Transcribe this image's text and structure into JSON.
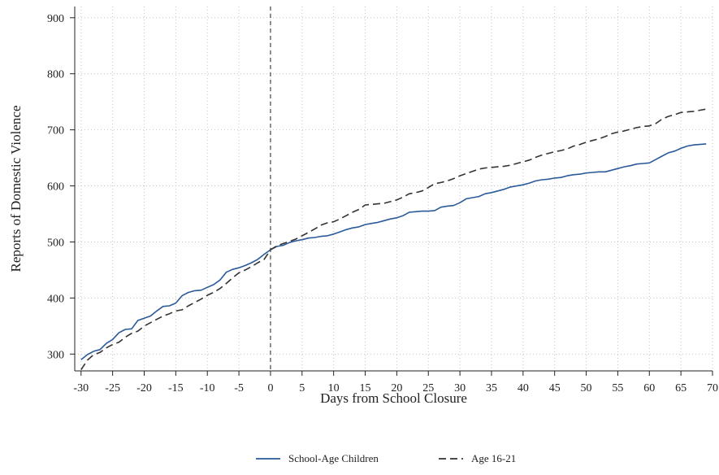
{
  "chart_data": {
    "type": "line",
    "title": "",
    "xlabel": "Days from School Closure",
    "ylabel": "Reports of Domestic Violence",
    "xlim": [
      -31,
      70
    ],
    "ylim": [
      270,
      920
    ],
    "xticks": [
      -30,
      -25,
      -20,
      -15,
      -10,
      -5,
      0,
      5,
      10,
      15,
      20,
      25,
      30,
      35,
      40,
      45,
      50,
      55,
      60,
      65,
      70
    ],
    "xtick_labels": [
      "-30",
      "-25",
      "-20",
      "-15",
      "-10",
      "-5",
      "0",
      "5",
      "10",
      "15",
      "20",
      "25",
      "30",
      "35",
      "40",
      "45",
      "50",
      "55",
      "60",
      "65",
      "70"
    ],
    "yticks": [
      300,
      400,
      500,
      600,
      700,
      800,
      900
    ],
    "ytick_labels": [
      "300",
      "400",
      "500",
      "600",
      "700",
      "800",
      "900"
    ],
    "grid": true,
    "reference_line_x": 0,
    "legend_position": "bottom",
    "series": [
      {
        "name": "School-Age Children",
        "color": "#2a5a9a",
        "style": "solid",
        "x": [
          -30,
          -29,
          -28,
          -27,
          -26,
          -25,
          -24,
          -23,
          -22,
          -21,
          -20,
          -19,
          -18,
          -17,
          -16,
          -15,
          -14,
          -13,
          -12,
          -11,
          -10,
          -9,
          -8,
          -7,
          -6,
          -5,
          -4,
          -3,
          -2,
          -1,
          0,
          1,
          2,
          3,
          4,
          5,
          6,
          7,
          8,
          9,
          10,
          11,
          12,
          13,
          14,
          15,
          16,
          17,
          18,
          19,
          20,
          21,
          22,
          23,
          24,
          25,
          26,
          27,
          28,
          29,
          30,
          31,
          32,
          33,
          34,
          35,
          36,
          37,
          38,
          39,
          40,
          41,
          42,
          43,
          44,
          45,
          46,
          47,
          48,
          49,
          50,
          51,
          52,
          53,
          54,
          55,
          56,
          57,
          58,
          59,
          60,
          61,
          62,
          63,
          64,
          65,
          66,
          67,
          68,
          69
        ],
        "y": [
          290,
          299,
          305,
          308,
          319,
          326,
          338,
          344,
          345,
          360,
          364,
          368,
          377,
          385,
          386,
          391,
          404,
          410,
          413,
          414,
          419,
          424,
          432,
          446,
          451,
          454,
          458,
          463,
          469,
          478,
          486,
          492,
          494,
          499,
          502,
          504,
          507,
          508,
          510,
          511,
          514,
          518,
          522,
          525,
          527,
          531,
          533,
          535,
          538,
          541,
          543,
          547,
          553,
          554,
          555,
          555,
          556,
          562,
          564,
          565,
          570,
          577,
          579,
          581,
          586,
          588,
          591,
          594,
          598,
          600,
          602,
          605,
          609,
          611,
          612,
          614,
          615,
          618,
          620,
          621,
          623,
          624,
          625,
          625,
          628,
          631,
          634,
          636,
          639,
          640,
          641,
          647,
          653,
          659,
          662,
          667,
          671,
          673,
          674,
          675
        ]
      },
      {
        "name": "Age 16-21",
        "color": "#333333",
        "style": "dashed",
        "x": [
          -30,
          -29,
          -28,
          -27,
          -26,
          -25,
          -24,
          -23,
          -22,
          -21,
          -20,
          -19,
          -18,
          -17,
          -16,
          -15,
          -14,
          -13,
          -12,
          -11,
          -10,
          -9,
          -8,
          -7,
          -6,
          -5,
          -4,
          -3,
          -2,
          -1,
          0,
          1,
          2,
          3,
          4,
          5,
          6,
          7,
          8,
          9,
          10,
          11,
          12,
          13,
          14,
          15,
          16,
          17,
          18,
          19,
          20,
          21,
          22,
          23,
          24,
          25,
          26,
          27,
          28,
          29,
          30,
          31,
          32,
          33,
          34,
          35,
          36,
          37,
          38,
          39,
          40,
          41,
          42,
          43,
          44,
          45,
          46,
          47,
          48,
          49,
          50,
          51,
          52,
          53,
          54,
          55,
          56,
          57,
          58,
          59,
          60,
          61,
          62,
          63,
          64,
          65,
          66,
          67,
          68,
          69
        ],
        "y": [
          272,
          289,
          299,
          303,
          311,
          317,
          321,
          330,
          337,
          341,
          350,
          356,
          362,
          368,
          372,
          377,
          379,
          386,
          392,
          398,
          405,
          410,
          417,
          426,
          436,
          445,
          450,
          456,
          463,
          469,
          486,
          493,
          497,
          501,
          505,
          511,
          517,
          523,
          530,
          534,
          536,
          541,
          547,
          553,
          558,
          566,
          567,
          568,
          569,
          572,
          575,
          580,
          586,
          588,
          591,
          597,
          604,
          606,
          609,
          613,
          618,
          622,
          626,
          630,
          632,
          633,
          634,
          635,
          637,
          640,
          643,
          646,
          651,
          655,
          658,
          661,
          663,
          666,
          671,
          674,
          678,
          681,
          684,
          688,
          693,
          696,
          698,
          701,
          704,
          706,
          707,
          711,
          719,
          724,
          727,
          731,
          732,
          733,
          735,
          737
        ]
      }
    ]
  }
}
